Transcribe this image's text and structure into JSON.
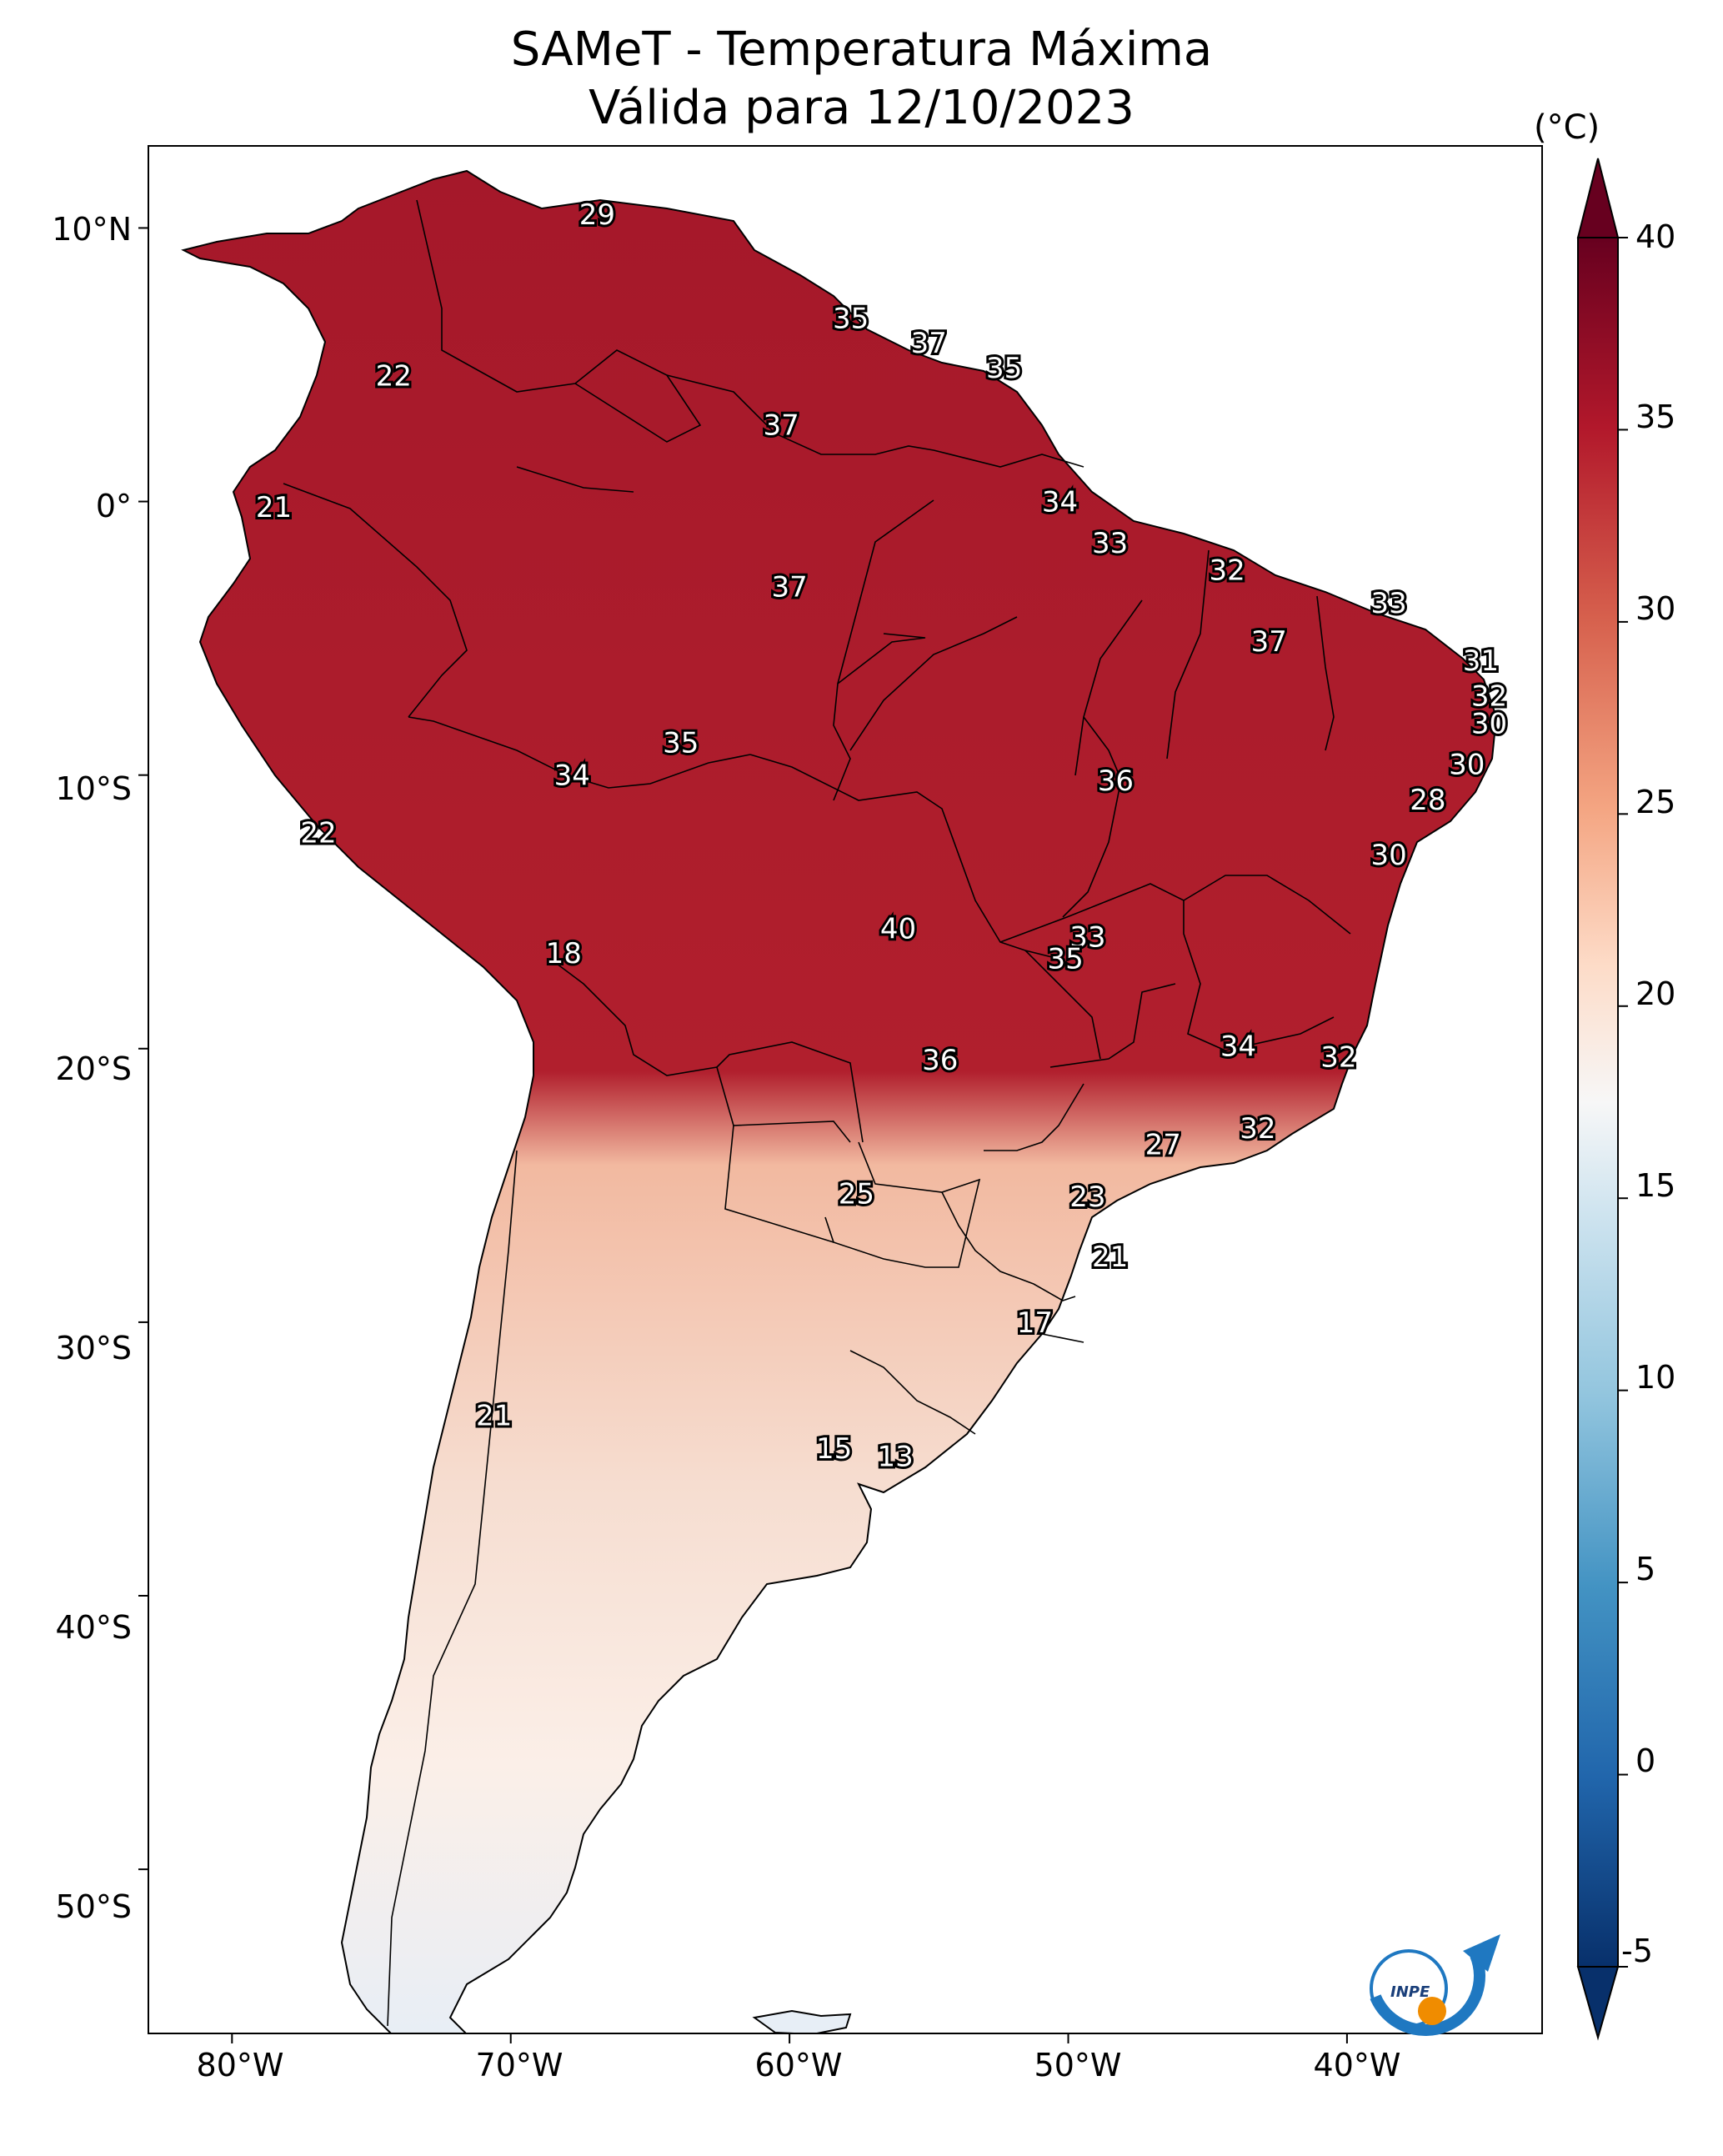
{
  "title_line1": "SAMeT - Temperatura Máxima",
  "title_line2": "Válida para 12/10/2023",
  "colorbar": {
    "unit": "(°C)",
    "ticks": [
      "40",
      "35",
      "30",
      "25",
      "20",
      "15",
      "10",
      "5",
      "0",
      "-5"
    ],
    "range": [
      -5,
      40
    ],
    "colors": [
      "#08306b",
      "#2166ac",
      "#4393c3",
      "#92c5de",
      "#d1e5f0",
      "#f7f7f7",
      "#fddbc7",
      "#f4a582",
      "#d6604d",
      "#b2182b",
      "#67001f"
    ]
  },
  "axes": {
    "lat_ticks": [
      "10°N",
      "0°",
      "10°S",
      "20°S",
      "30°S",
      "40°S",
      "50°S"
    ],
    "lon_ticks": [
      "80°W",
      "70°W",
      "60°W",
      "50°W",
      "40°W"
    ]
  },
  "logo": {
    "text": "INPE"
  },
  "temperature_labels": [
    {
      "value": "29",
      "lon": -66.9,
      "lat": 10.5
    },
    {
      "value": "22",
      "lon": -74.2,
      "lat": 4.6
    },
    {
      "value": "35",
      "lon": -57.8,
      "lat": 6.7
    },
    {
      "value": "37",
      "lon": -55.0,
      "lat": 5.8
    },
    {
      "value": "35",
      "lon": -52.3,
      "lat": 4.9
    },
    {
      "value": "37",
      "lon": -60.3,
      "lat": 2.8
    },
    {
      "value": "21",
      "lon": -78.5,
      "lat": -0.2
    },
    {
      "value": "34",
      "lon": -50.3,
      "lat": 0.0
    },
    {
      "value": "33",
      "lon": -48.5,
      "lat": -1.5
    },
    {
      "value": "32",
      "lon": -44.3,
      "lat": -2.5
    },
    {
      "value": "37",
      "lon": -60.0,
      "lat": -3.1
    },
    {
      "value": "33",
      "lon": -38.5,
      "lat": -3.7
    },
    {
      "value": "37",
      "lon": -42.8,
      "lat": -5.1
    },
    {
      "value": "31",
      "lon": -35.2,
      "lat": -5.8
    },
    {
      "value": "32",
      "lon": -34.9,
      "lat": -7.1
    },
    {
      "value": "30",
      "lon": -35.7,
      "lat": -9.6
    },
    {
      "value": "30",
      "lon": -34.9,
      "lat": -8.1
    },
    {
      "value": "35",
      "lon": -63.9,
      "lat": -8.8
    },
    {
      "value": "34",
      "lon": -67.8,
      "lat": -10.0
    },
    {
      "value": "36",
      "lon": -48.3,
      "lat": -10.2
    },
    {
      "value": "28",
      "lon": -37.1,
      "lat": -10.9
    },
    {
      "value": "22",
      "lon": -76.9,
      "lat": -12.1
    },
    {
      "value": "30",
      "lon": -38.5,
      "lat": -12.9
    },
    {
      "value": "40",
      "lon": -56.1,
      "lat": -15.6
    },
    {
      "value": "33",
      "lon": -49.3,
      "lat": -15.9
    },
    {
      "value": "35",
      "lon": -50.1,
      "lat": -16.7
    },
    {
      "value": "18",
      "lon": -68.1,
      "lat": -16.5
    },
    {
      "value": "34",
      "lon": -43.9,
      "lat": -19.9
    },
    {
      "value": "32",
      "lon": -40.3,
      "lat": -20.3
    },
    {
      "value": "36",
      "lon": -54.6,
      "lat": -20.4
    },
    {
      "value": "32",
      "lon": -43.2,
      "lat": -22.9
    },
    {
      "value": "27",
      "lon": -46.6,
      "lat": -23.5
    },
    {
      "value": "25",
      "lon": -57.6,
      "lat": -25.3
    },
    {
      "value": "23",
      "lon": -49.3,
      "lat": -25.4
    },
    {
      "value": "21",
      "lon": -48.5,
      "lat": -27.6
    },
    {
      "value": "17",
      "lon": -51.2,
      "lat": -30.0
    },
    {
      "value": "21",
      "lon": -70.6,
      "lat": -33.4
    },
    {
      "value": "15",
      "lon": -58.4,
      "lat": -34.6
    },
    {
      "value": "13",
      "lon": -56.2,
      "lat": -34.9
    }
  ]
}
